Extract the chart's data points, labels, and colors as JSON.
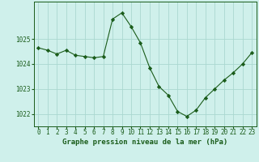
{
  "x": [
    0,
    1,
    2,
    3,
    4,
    5,
    6,
    7,
    8,
    9,
    10,
    11,
    12,
    13,
    14,
    15,
    16,
    17,
    18,
    19,
    20,
    21,
    22,
    23
  ],
  "y": [
    1024.65,
    1024.55,
    1024.4,
    1024.55,
    1024.35,
    1024.3,
    1024.25,
    1024.3,
    1025.8,
    1026.05,
    1025.5,
    1024.85,
    1023.85,
    1023.1,
    1022.75,
    1022.1,
    1021.9,
    1022.15,
    1022.65,
    1023.0,
    1023.35,
    1023.65,
    1024.0,
    1024.45
  ],
  "line_color": "#1a5c1a",
  "marker": "D",
  "marker_size": 2.2,
  "bg_color": "#cff0eb",
  "grid_color": "#aad8d0",
  "xlabel": "Graphe pression niveau de la mer (hPa)",
  "xlabel_fontsize": 6.5,
  "tick_fontsize": 5.5,
  "yticks": [
    1022,
    1023,
    1024,
    1025
  ],
  "ylim": [
    1021.5,
    1026.5
  ],
  "xlim": [
    -0.5,
    23.5
  ],
  "xticks": [
    0,
    1,
    2,
    3,
    4,
    5,
    6,
    7,
    8,
    9,
    10,
    11,
    12,
    13,
    14,
    15,
    16,
    17,
    18,
    19,
    20,
    21,
    22,
    23
  ]
}
